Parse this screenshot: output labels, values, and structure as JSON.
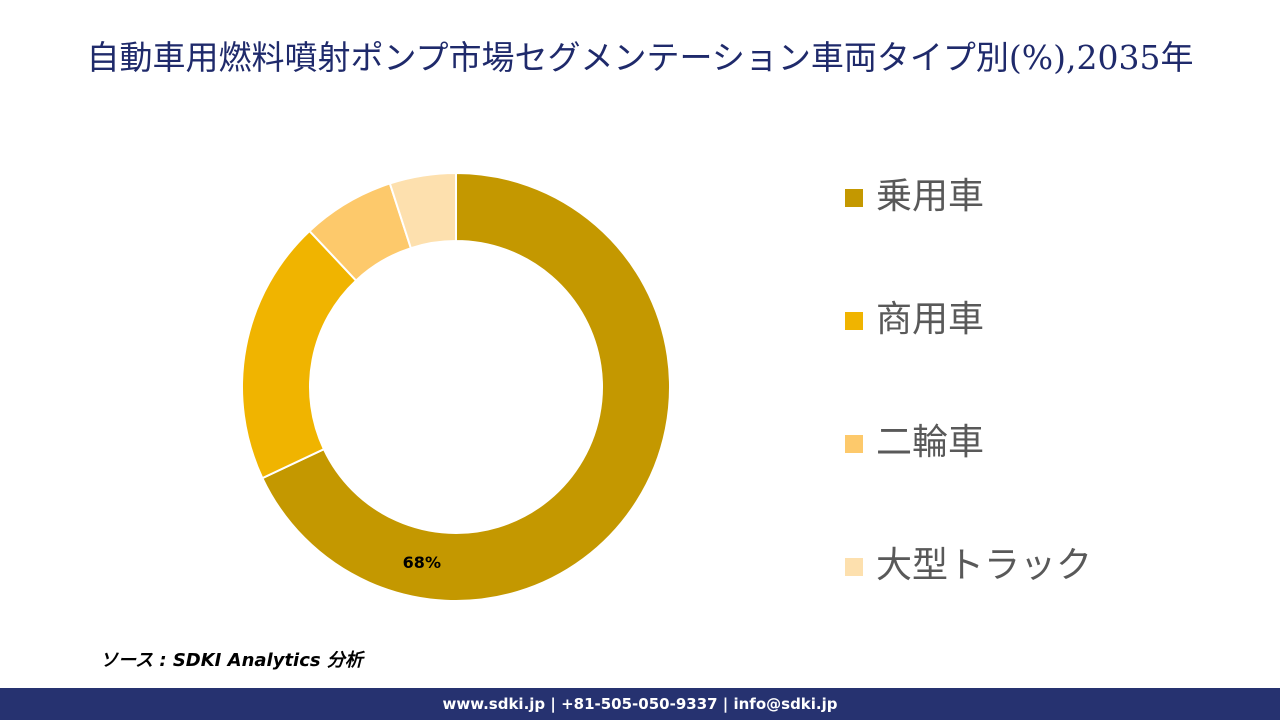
{
  "chart_data": {
    "type": "donut",
    "title": "自動車用燃料噴射ポンプ市場セグメンテーション車両タイプ別(%),2035年",
    "categories": [
      "乗用車",
      "商用車",
      "二輪車",
      "大型トラック"
    ],
    "values": [
      68,
      20,
      7,
      5
    ],
    "value_labels": [
      "68%",
      null,
      null,
      null
    ],
    "colors": [
      "#c49800",
      "#f0b400",
      "#fdc96b",
      "#fde0ae"
    ]
  },
  "source": "ソース : SDKI Analytics 分析",
  "footer": "www.sdki.jp | +81-505-050-9337 | info@sdki.jp"
}
